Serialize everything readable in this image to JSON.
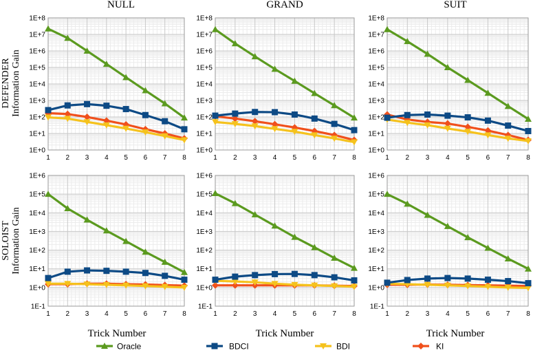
{
  "chart_data": {
    "type": "line",
    "x": [
      1,
      2,
      3,
      4,
      5,
      6,
      7,
      8
    ],
    "xlabel": "Trick Number",
    "ylabel": "Information Gain",
    "yscale": "log",
    "columns": [
      "NULL",
      "GRAND",
      "SUIT"
    ],
    "rows": [
      "DEFENDER",
      "SOLOIST"
    ],
    "legend": {
      "placement": "bottom",
      "entries": [
        {
          "name": "Oracle",
          "color": "#5b9a1f",
          "marker": "triangle"
        },
        {
          "name": "BDCI",
          "color": "#0d4a85",
          "marker": "square"
        },
        {
          "name": "BDI",
          "color": "#f5c21d",
          "marker": "down-triangle"
        },
        {
          "name": "KI",
          "color": "#f0501c",
          "marker": "diamond"
        }
      ]
    },
    "grid": true,
    "panels": [
      {
        "row": "DEFENDER",
        "column": "NULL",
        "ylim": [
          "1E+0",
          "1E+8"
        ],
        "yticks": [
          "1E+0",
          "1E+1",
          "1E+2",
          "1E+3",
          "1E+4",
          "1E+5",
          "1E+6",
          "1E+7",
          "1E+8"
        ],
        "series": [
          {
            "name": "Oracle",
            "values": [
              22000000,
              6000000,
              1000000,
              160000,
              25000,
              4000,
              650,
              90
            ]
          },
          {
            "name": "BDCI",
            "values": [
              260,
              500,
              600,
              480,
              300,
              130,
              55,
              18
            ]
          },
          {
            "name": "BDI",
            "values": [
              95,
              80,
              50,
              32,
              20,
              12,
              7,
              4
            ]
          },
          {
            "name": "KI",
            "values": [
              170,
              150,
              100,
              60,
              35,
              18,
              10,
              5
            ]
          }
        ]
      },
      {
        "row": "DEFENDER",
        "column": "GRAND",
        "ylim": [
          "1E+0",
          "1E+8"
        ],
        "yticks": [
          "1E+0",
          "1E+1",
          "1E+2",
          "1E+3",
          "1E+4",
          "1E+5",
          "1E+6",
          "1E+7",
          "1E+8"
        ],
        "series": [
          {
            "name": "Oracle",
            "values": [
              20000000,
              2800000,
              460000,
              80000,
              15000,
              2700,
              500,
              90
            ]
          },
          {
            "name": "BDCI",
            "values": [
              120,
              160,
              200,
              195,
              140,
              80,
              38,
              16
            ]
          },
          {
            "name": "BDI",
            "values": [
              50,
              38,
              28,
              19,
              13,
              8,
              5,
              3
            ]
          },
          {
            "name": "KI",
            "values": [
              110,
              80,
              55,
              36,
              23,
              14,
              8,
              4
            ]
          }
        ]
      },
      {
        "row": "DEFENDER",
        "column": "SUIT",
        "ylim": [
          "1E+0",
          "1E+8"
        ],
        "yticks": [
          "1E+0",
          "1E+1",
          "1E+2",
          "1E+3",
          "1E+4",
          "1E+5",
          "1E+6",
          "1E+7",
          "1E+8"
        ],
        "series": [
          {
            "name": "Oracle",
            "values": [
              20000000,
              3800000,
              650000,
              100000,
              17000,
              2800,
              450,
              75
            ]
          },
          {
            "name": "BDCI",
            "values": [
              90,
              130,
              140,
              120,
              95,
              60,
              30,
              14
            ]
          },
          {
            "name": "BDI",
            "values": [
              70,
              45,
              32,
              20,
              13,
              8,
              5,
              3.5
            ]
          },
          {
            "name": "KI",
            "values": [
              140,
              70,
              50,
              40,
              25,
              15,
              8,
              4
            ]
          }
        ]
      },
      {
        "row": "SOLOIST",
        "column": "NULL",
        "ylim": [
          "1E-1",
          "1E+6"
        ],
        "yticks": [
          "1E-1",
          "1E+0",
          "1E+1",
          "1E+2",
          "1E+3",
          "1E+4",
          "1E+5",
          "1E+6"
        ],
        "series": [
          {
            "name": "Oracle",
            "values": [
              100000,
              17000,
              4200,
              1100,
              300,
              80,
              23,
              6.5
            ]
          },
          {
            "name": "BDCI",
            "values": [
              3.2,
              7,
              8.2,
              7.8,
              7,
              6,
              4.2,
              2.6
            ]
          },
          {
            "name": "BDI",
            "values": [
              1.6,
              1.6,
              1.5,
              1.4,
              1.3,
              1.2,
              1.1,
              1.0
            ]
          },
          {
            "name": "KI",
            "values": [
              1.5,
              1.5,
              1.6,
              1.6,
              1.5,
              1.45,
              1.35,
              1.25
            ]
          }
        ]
      },
      {
        "row": "SOLOIST",
        "column": "GRAND",
        "ylim": [
          "1E-1",
          "1E+6"
        ],
        "yticks": [
          "1E-1",
          "1E+0",
          "1E+1",
          "1E+2",
          "1E+3",
          "1E+4",
          "1E+5",
          "1E+6"
        ],
        "series": [
          {
            "name": "Oracle",
            "values": [
              110000,
              32000,
              8000,
              2000,
              500,
              140,
              38,
              11
            ]
          },
          {
            "name": "BDCI",
            "values": [
              2.6,
              3.8,
              4.6,
              5.2,
              5.3,
              4.6,
              3.5,
              2.4
            ]
          },
          {
            "name": "BDI",
            "values": [
              2.3,
              2.1,
              1.9,
              1.6,
              1.4,
              1.3,
              1.2,
              1.1
            ]
          },
          {
            "name": "KI",
            "values": [
              1.3,
              1.3,
              1.3,
              1.3,
              1.3,
              1.3,
              1.25,
              1.2
            ]
          }
        ]
      },
      {
        "row": "SOLOIST",
        "column": "SUIT",
        "ylim": [
          "1E-1",
          "1E+6"
        ],
        "yticks": [
          "1E-1",
          "1E+0",
          "1E+1",
          "1E+2",
          "1E+3",
          "1E+4",
          "1E+5",
          "1E+6"
        ],
        "series": [
          {
            "name": "Oracle",
            "values": [
              100000,
              30000,
              7500,
              1900,
              480,
              130,
              35,
              10
            ]
          },
          {
            "name": "BDCI",
            "values": [
              1.8,
              2.5,
              3.0,
              3.2,
              3.0,
              2.6,
              2.2,
              1.7
            ]
          },
          {
            "name": "BDI",
            "values": [
              1.6,
              1.5,
              1.4,
              1.3,
              1.2,
              1.1,
              1.0,
              0.95
            ]
          },
          {
            "name": "KI",
            "values": [
              1.4,
              1.4,
              1.45,
              1.4,
              1.35,
              1.3,
              1.25,
              1.2
            ]
          }
        ]
      }
    ]
  }
}
